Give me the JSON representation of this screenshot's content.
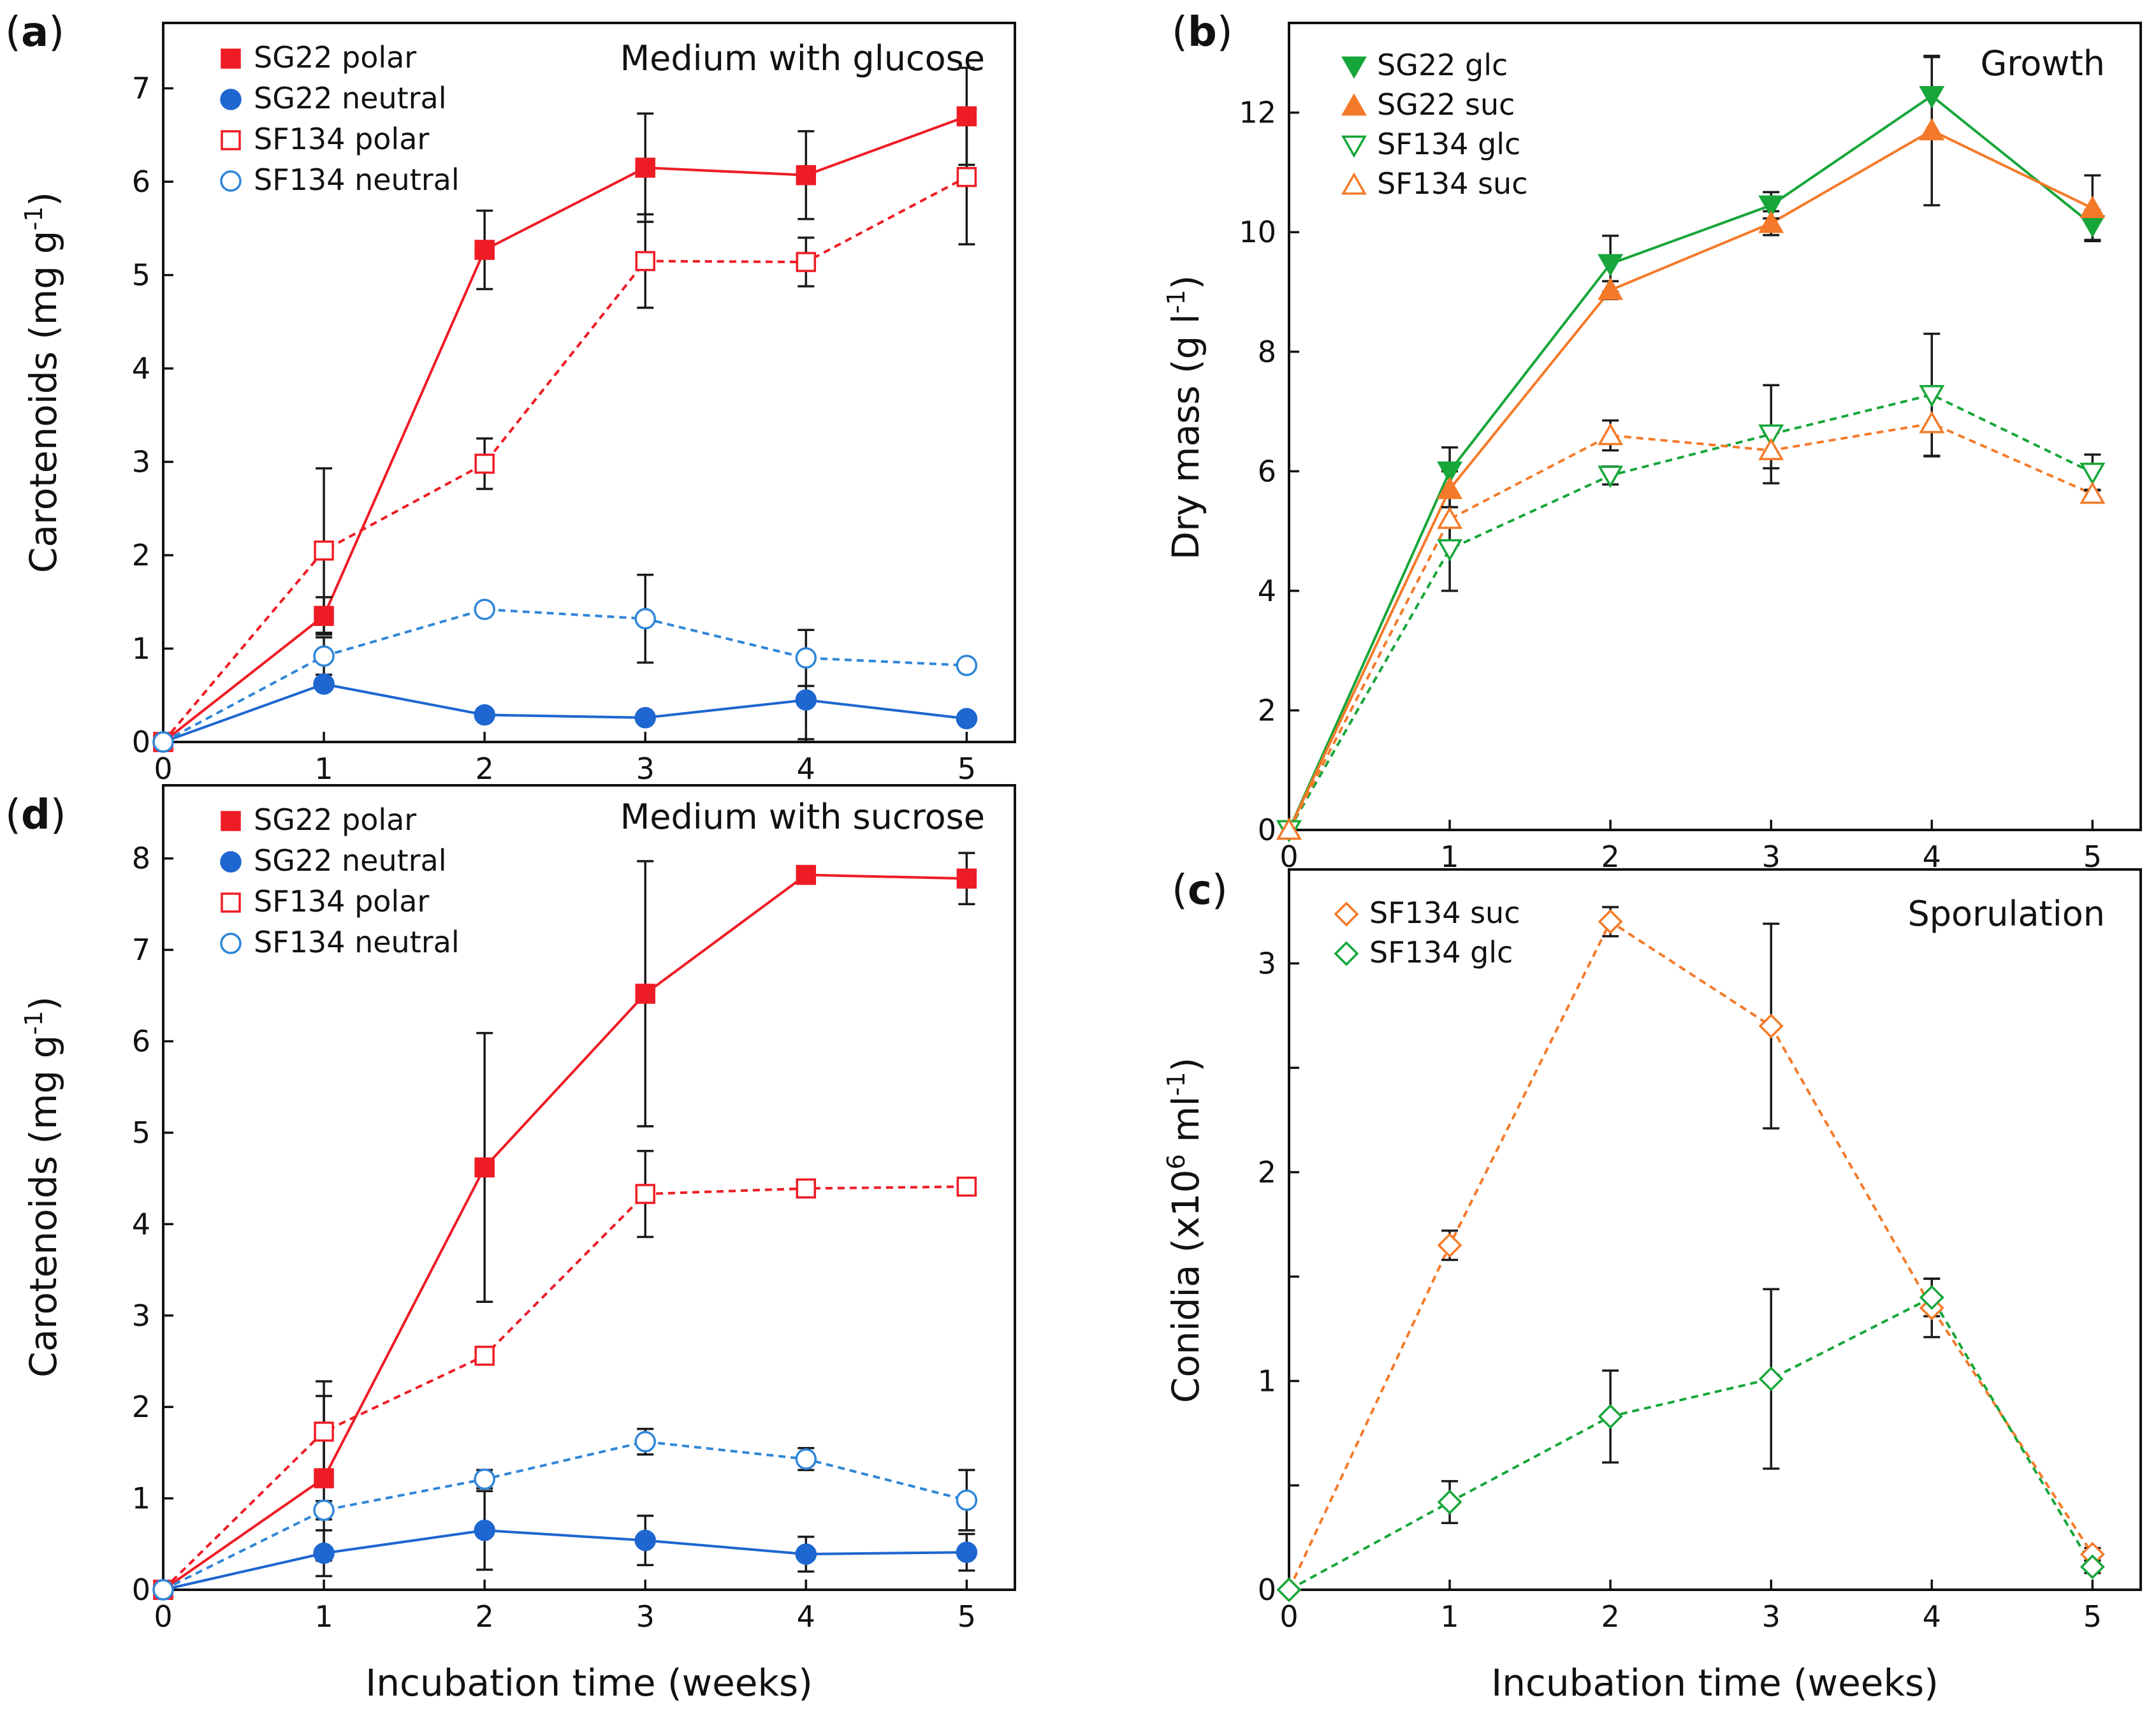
{
  "colors": {
    "red": "#ee1c25",
    "blue": "#1e66d0",
    "lightblue": "#2f86d8",
    "green": "#17a63a",
    "orange": "#f47a2a",
    "errorbar": "#1a1a1a"
  },
  "chart_data": [
    {
      "panel": "a",
      "type": "line",
      "title": "Medium with glucose",
      "xlabel": "",
      "ylabel": "Carotenoids (mg g",
      "ylabel_sup": "-1",
      "ylabel_end": ")",
      "xlim": [
        0,
        5.3
      ],
      "ylim": [
        0,
        7.7
      ],
      "xticks": [
        0,
        1,
        2,
        3,
        4,
        5
      ],
      "yticks": [
        0,
        1,
        2,
        3,
        4,
        5,
        6,
        7
      ],
      "x": [
        0,
        1,
        2,
        3,
        4,
        5
      ],
      "series": [
        {
          "name": "SG22 polar",
          "color": "#ee1c25",
          "marker": "square",
          "filled": true,
          "dash": false,
          "values": [
            0,
            1.35,
            5.27,
            6.15,
            6.07,
            6.7
          ],
          "errors": [
            0,
            0.2,
            0.42,
            0.58,
            0.47,
            0.52
          ]
        },
        {
          "name": "SG22 neutral",
          "color": "#1e66d0",
          "marker": "circle",
          "filled": true,
          "dash": false,
          "values": [
            0,
            0.62,
            0.29,
            0.26,
            0.45,
            0.25
          ],
          "errors": [
            0,
            0.06,
            0.05,
            0.03,
            0.42,
            0.03
          ]
        },
        {
          "name": "SF134 polar",
          "color": "#ee1c25",
          "marker": "square",
          "filled": false,
          "dash": true,
          "values": [
            0,
            2.05,
            2.98,
            5.15,
            5.14,
            6.05
          ],
          "errors": [
            0,
            0.88,
            0.27,
            0.5,
            0.26,
            0.72
          ]
        },
        {
          "name": "SF134 neutral",
          "color": "#2f86d8",
          "marker": "circle",
          "filled": false,
          "dash": true,
          "values": [
            0,
            0.92,
            1.42,
            1.32,
            0.9,
            0.82
          ],
          "errors": [
            0,
            0.2,
            0.05,
            0.47,
            0.3,
            0.06
          ]
        }
      ]
    },
    {
      "panel": "d",
      "type": "line",
      "title": "Medium with sucrose",
      "xlabel": "Incubation time (weeks)",
      "ylabel": "Carotenoids (mg g",
      "ylabel_sup": "-1",
      "ylabel_end": ")",
      "xlim": [
        0,
        5.3
      ],
      "ylim": [
        0,
        8.8
      ],
      "xticks": [
        0,
        1,
        2,
        3,
        4,
        5
      ],
      "yticks": [
        0,
        1,
        2,
        3,
        4,
        5,
        6,
        7,
        8
      ],
      "x": [
        0,
        1,
        2,
        3,
        4,
        5
      ],
      "series": [
        {
          "name": "SG22 polar",
          "color": "#ee1c25",
          "marker": "square",
          "filled": true,
          "dash": false,
          "values": [
            0,
            1.22,
            4.62,
            6.52,
            7.82,
            7.78
          ],
          "errors": [
            0,
            0.9,
            1.47,
            1.45,
            0.05,
            0.28
          ]
        },
        {
          "name": "SG22 neutral",
          "color": "#1e66d0",
          "marker": "circle",
          "filled": true,
          "dash": false,
          "values": [
            0,
            0.4,
            0.65,
            0.54,
            0.39,
            0.41
          ],
          "errors": [
            0,
            0.25,
            0.43,
            0.27,
            0.19,
            0.2
          ]
        },
        {
          "name": "SF134 polar",
          "color": "#ee1c25",
          "marker": "square",
          "filled": false,
          "dash": true,
          "values": [
            0,
            1.73,
            2.56,
            4.33,
            4.39,
            4.41
          ],
          "errors": [
            0,
            0.55,
            0.05,
            0.47,
            0.05,
            0.05
          ]
        },
        {
          "name": "SF134 neutral",
          "color": "#2f86d8",
          "marker": "circle",
          "filled": false,
          "dash": true,
          "values": [
            0,
            0.87,
            1.21,
            1.62,
            1.43,
            0.98
          ],
          "errors": [
            0,
            0.1,
            0.1,
            0.14,
            0.12,
            0.33
          ]
        }
      ]
    },
    {
      "panel": "b",
      "type": "line",
      "title": "Growth",
      "xlabel": "",
      "ylabel": "Dry mass (g l",
      "ylabel_sup": "-1",
      "ylabel_end": ")",
      "xlim": [
        0,
        5.3
      ],
      "ylim": [
        0,
        13.5
      ],
      "xticks": [
        0,
        1,
        2,
        3,
        4,
        5
      ],
      "yticks": [
        0,
        2,
        4,
        6,
        8,
        10,
        12
      ],
      "x": [
        0,
        1,
        2,
        3,
        4,
        5
      ],
      "series": [
        {
          "name": "SG22 glc",
          "color": "#17a63a",
          "marker": "triangle-down",
          "filled": true,
          "dash": false,
          "values": [
            0,
            6.0,
            9.47,
            10.45,
            12.28,
            10.12
          ],
          "errors": [
            0,
            0.4,
            0.47,
            0.22,
            0.65,
            0.25
          ]
        },
        {
          "name": "SG22 suc",
          "color": "#f47a2a",
          "marker": "triangle-up",
          "filled": true,
          "dash": false,
          "values": [
            0,
            5.7,
            9.03,
            10.15,
            11.7,
            10.4
          ],
          "errors": [
            0,
            0.3,
            0.15,
            0.2,
            1.25,
            0.55
          ]
        },
        {
          "name": "SF134 glc",
          "color": "#17a63a",
          "marker": "triangle-down",
          "filled": false,
          "dash": true,
          "values": [
            0,
            4.7,
            5.93,
            6.62,
            7.28,
            5.98
          ],
          "errors": [
            0,
            0.7,
            0.15,
            0.82,
            1.02,
            0.3
          ]
        },
        {
          "name": "SF134 suc",
          "color": "#f47a2a",
          "marker": "triangle-up",
          "filled": false,
          "dash": true,
          "values": [
            0,
            5.2,
            6.6,
            6.35,
            6.8,
            5.62
          ],
          "errors": [
            0,
            0.45,
            0.25,
            0.3,
            0.55,
            0.07
          ]
        }
      ]
    },
    {
      "panel": "c",
      "type": "line",
      "title": "Sporulation",
      "xlabel": "Incubation time (weeks)",
      "ylabel": "Conidia (x10",
      "ylabel_sup": "6",
      "ylabel_mid": " ml",
      "ylabel_sup2": "-1",
      "ylabel_end": ")",
      "xlim": [
        0,
        5.3
      ],
      "ylim": [
        0,
        3.45
      ],
      "xticks": [
        0,
        1,
        2,
        3,
        4,
        5
      ],
      "yticks": [
        0,
        0.5,
        1,
        1.5,
        2,
        2.5,
        3
      ],
      "yticklabels": [
        "0",
        "",
        "1",
        "",
        "2",
        "",
        "3"
      ],
      "x": [
        0,
        1,
        2,
        3,
        4,
        5
      ],
      "series": [
        {
          "name": "SF134 suc",
          "color": "#f47a2a",
          "marker": "diamond",
          "filled": false,
          "dash": true,
          "values": [
            0,
            1.65,
            3.2,
            2.7,
            1.35,
            0.17
          ],
          "errors": [
            0,
            0.07,
            0.07,
            0.49,
            0.14,
            0.03
          ]
        },
        {
          "name": "SF134 glc",
          "color": "#17a63a",
          "marker": "diamond",
          "filled": false,
          "dash": true,
          "values": [
            0,
            0.42,
            0.83,
            1.01,
            1.4,
            0.11
          ],
          "errors": [
            0,
            0.1,
            0.22,
            0.43,
            0.09,
            0.03
          ]
        }
      ]
    }
  ]
}
